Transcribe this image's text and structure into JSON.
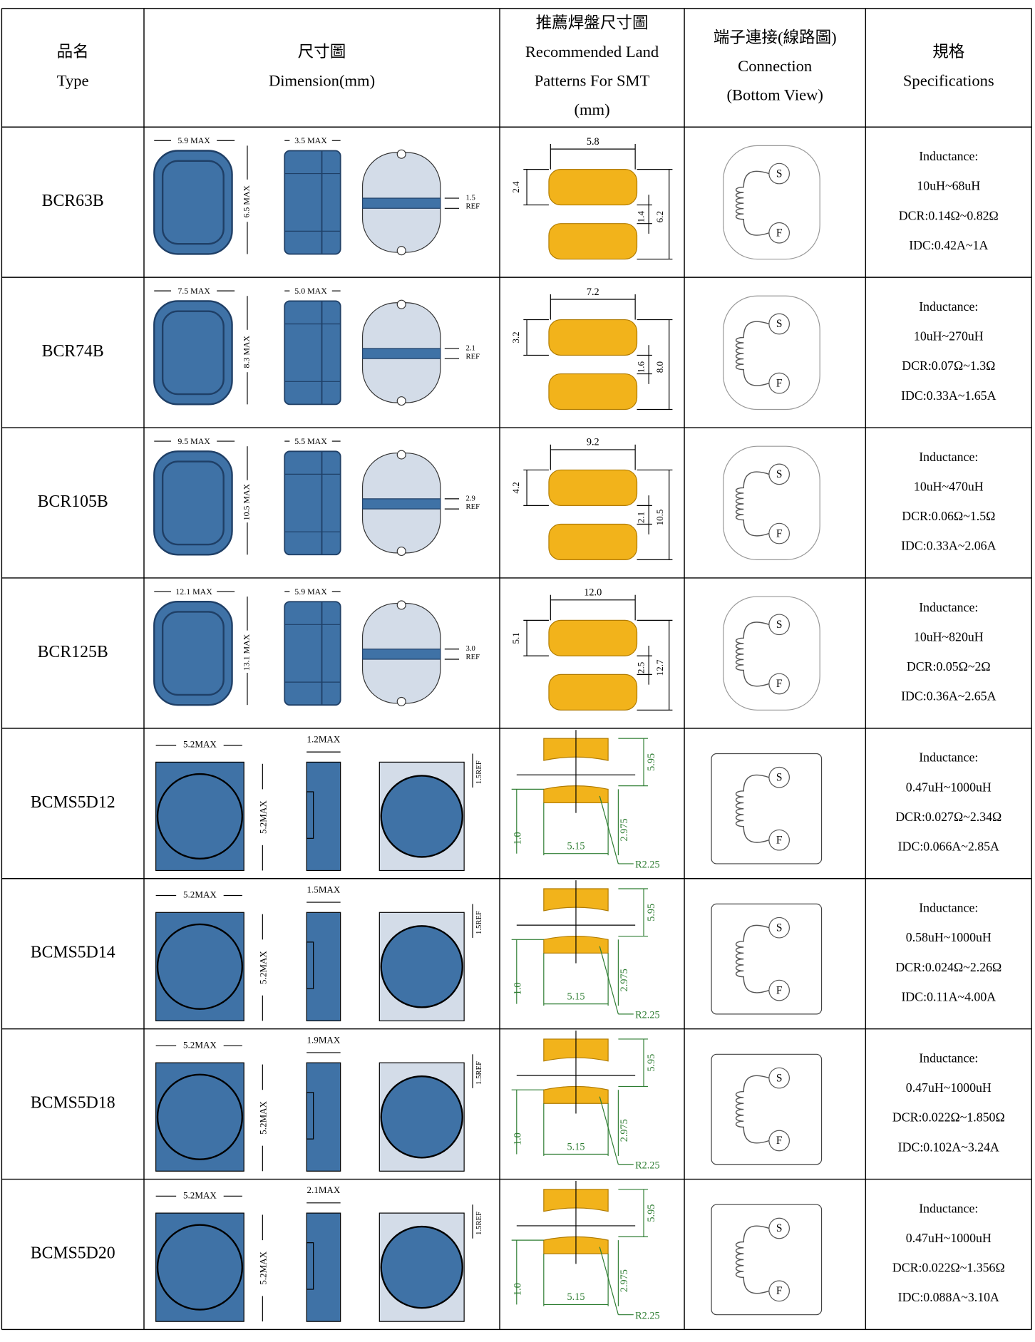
{
  "header": [
    [
      "品名",
      "Type"
    ],
    [
      "尺寸圖",
      "Dimension(mm)"
    ],
    [
      "推薦焊盤尺寸圖",
      "Recommended Land",
      "Patterns For SMT",
      "(mm)"
    ],
    [
      "端子連接(線路圖)",
      "Connection",
      "(Bottom View)"
    ],
    [
      "規格",
      "Specifications"
    ]
  ],
  "rows": [
    {
      "type": "BCR63B",
      "dimension": {
        "width": "5.9 MAX",
        "thickness": "3.5 MAX",
        "height": "6.5 MAX",
        "ref": "1.5",
        "ref_note": "REF"
      },
      "land": {
        "width": "5.8",
        "pad": "2.4",
        "gap": "1.4",
        "total": "6.2"
      },
      "connection": {
        "start": "S",
        "end": "F"
      },
      "specifications": [
        "Inductance:",
        "10uH~68uH",
        "DCR:0.14Ω~0.82Ω",
        "IDC:0.42A~1A"
      ]
    },
    {
      "type": "BCR74B",
      "dimension": {
        "width": "7.5 MAX",
        "thickness": "5.0 MAX",
        "height": "8.3 MAX",
        "ref": "2.1",
        "ref_note": "REF"
      },
      "land": {
        "width": "7.2",
        "pad": "3.2",
        "gap": "1.6",
        "total": "8.0"
      },
      "connection": {
        "start": "S",
        "end": "F"
      },
      "specifications": [
        "Inductance:",
        "10uH~270uH",
        "DCR:0.07Ω~1.3Ω",
        "IDC:0.33A~1.65A"
      ]
    },
    {
      "type": "BCR105B",
      "dimension": {
        "width": "9.5 MAX",
        "thickness": "5.5 MAX",
        "height": "10.5 MAX",
        "ref": "2.9",
        "ref_note": "REF"
      },
      "land": {
        "width": "9.2",
        "pad": "4.2",
        "gap": "2.1",
        "total": "10.5"
      },
      "connection": {
        "start": "S",
        "end": "F"
      },
      "specifications": [
        "Inductance:",
        "10uH~470uH",
        "DCR:0.06Ω~1.5Ω",
        "IDC:0.33A~2.06A"
      ]
    },
    {
      "type": "BCR125B",
      "dimension": {
        "width": "12.1 MAX",
        "thickness": "5.9 MAX",
        "height": "13.1 MAX",
        "ref": "3.0",
        "ref_note": "REF"
      },
      "land": {
        "width": "12.0",
        "pad": "5.1",
        "gap": "2.5",
        "total": "12.7"
      },
      "connection": {
        "start": "S",
        "end": "F"
      },
      "specifications": [
        "Inductance:",
        "10uH~820uH",
        "DCR:0.05Ω~2Ω",
        "IDC:0.36A~2.65A"
      ]
    },
    {
      "type": "BCMS5D12",
      "dimension": {
        "width": "5.2MAX",
        "thickness": "1.2MAX",
        "height": "5.2MAX",
        "ref": "1.5REF"
      },
      "land": {
        "height": "5.95",
        "pad": "1.0",
        "width": "5.15",
        "half": "2.975",
        "radius": "R2.25"
      },
      "connection": {
        "start": "S",
        "end": "F"
      },
      "specifications": [
        "Inductance:",
        "0.47uH~1000uH",
        "DCR:0.027Ω~2.34Ω",
        "IDC:0.066A~2.85A"
      ]
    },
    {
      "type": "BCMS5D14",
      "dimension": {
        "width": "5.2MAX",
        "thickness": "1.5MAX",
        "height": "5.2MAX",
        "ref": "1.5REF"
      },
      "land": {
        "height": "5.95",
        "pad": "1.0",
        "width": "5.15",
        "half": "2.975",
        "radius": "R2.25"
      },
      "connection": {
        "start": "S",
        "end": "F"
      },
      "specifications": [
        "Inductance:",
        "0.58uH~1000uH",
        "DCR:0.024Ω~2.26Ω",
        "IDC:0.11A~4.00A"
      ]
    },
    {
      "type": "BCMS5D18",
      "dimension": {
        "width": "5.2MAX",
        "thickness": "1.9MAX",
        "height": "5.2MAX",
        "ref": "1.5REF"
      },
      "land": {
        "height": "5.95",
        "pad": "1.0",
        "width": "5.15",
        "half": "2.975",
        "radius": "R2.25"
      },
      "connection": {
        "start": "S",
        "end": "F"
      },
      "specifications": [
        "Inductance:",
        "0.47uH~1000uH",
        "DCR:0.022Ω~1.850Ω",
        "IDC:0.102A~3.24A"
      ]
    },
    {
      "type": "BCMS5D20",
      "dimension": {
        "width": "5.2MAX",
        "thickness": "2.1MAX",
        "height": "5.2MAX",
        "ref": "1.5REF"
      },
      "land": {
        "height": "5.95",
        "pad": "1.0",
        "width": "5.15",
        "half": "2.975",
        "radius": "R2.25"
      },
      "connection": {
        "start": "S",
        "end": "F"
      },
      "specifications": [
        "Inductance:",
        "0.47uH~1000uH",
        "DCR:0.022Ω~1.356Ω",
        "IDC:0.088A~3.10A"
      ]
    }
  ]
}
